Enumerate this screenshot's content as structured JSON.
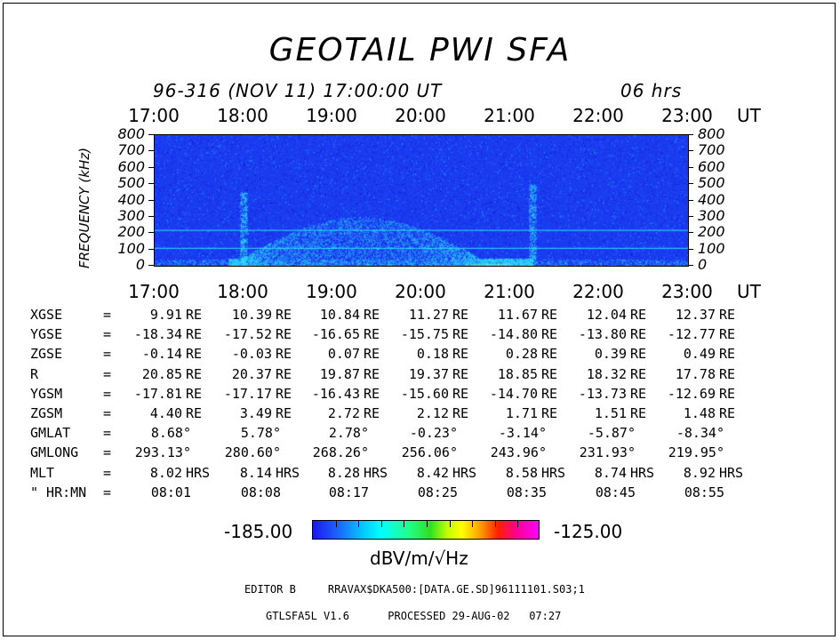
{
  "chart_data": {
    "type": "heatmap",
    "title": "GEOTAIL PWI SFA",
    "subtitle": "96-316 (NOV 11) 17:00:00 UT",
    "duration": "06 hrs",
    "x_unit": "UT",
    "x_ticks": [
      "17:00",
      "18:00",
      "19:00",
      "20:00",
      "21:00",
      "22:00",
      "23:00"
    ],
    "x_range": [
      "17:00",
      "23:00"
    ],
    "ylabel": "FREQUENCY (kHz)",
    "y_ticks": [
      800,
      700,
      600,
      500,
      400,
      300,
      200,
      100,
      0
    ],
    "y_range": [
      0,
      800
    ],
    "colorbar": {
      "min_label": "-185.00",
      "max_label": "-125.00",
      "unit": "dBV/m/√Hz",
      "colors": [
        "#1a18f0",
        "#1a6cff",
        "#00c8ff",
        "#00ffff",
        "#22ff90",
        "#30e020",
        "#c8ff00",
        "#ffff00",
        "#ffa000",
        "#ff2000",
        "#ff0090",
        "#ff00ff"
      ]
    },
    "background_color": "#1a3cf0",
    "features": [
      {
        "name": "broadband enhancement",
        "x_start": "17:50",
        "x_end": "21:15",
        "freq_max_khz": 300,
        "level": "cyan"
      },
      {
        "name": "vertical burst",
        "x": "18:00",
        "freq_max_khz": 450,
        "level": "cyan"
      },
      {
        "name": "vertical burst",
        "x": "21:15",
        "freq_max_khz": 500,
        "level": "cyan"
      },
      {
        "name": "low frequency band",
        "x_start": "17:00",
        "x_end": "23:00",
        "freq_max_khz": 40,
        "level": "cyan"
      },
      {
        "name": "low frequency intense",
        "x_start": "20:30",
        "x_end": "21:00",
        "freq_max_khz": 15,
        "level": "yellow"
      },
      {
        "name": "horizontal line",
        "freq_khz": 220,
        "level": "cyan"
      },
      {
        "name": "horizontal line",
        "freq_khz": 110,
        "level": "cyan"
      }
    ]
  },
  "orbit": {
    "rows": [
      {
        "label": "XGSE",
        "eq": "=",
        "values": [
          "9.91",
          "10.39",
          "10.84",
          "11.27",
          "11.67",
          "12.04",
          "12.37"
        ],
        "unit": "RE"
      },
      {
        "label": "YGSE",
        "eq": "=",
        "values": [
          "-18.34",
          "-17.52",
          "-16.65",
          "-15.75",
          "-14.80",
          "-13.80",
          "-12.77"
        ],
        "unit": "RE"
      },
      {
        "label": "ZGSE",
        "eq": "=",
        "values": [
          "-0.14",
          "-0.03",
          "0.07",
          "0.18",
          "0.28",
          "0.39",
          "0.49"
        ],
        "unit": "RE"
      },
      {
        "label": "R",
        "eq": "=",
        "values": [
          "20.85",
          "20.37",
          "19.87",
          "19.37",
          "18.85",
          "18.32",
          "17.78"
        ],
        "unit": "RE"
      },
      {
        "label": "YGSM",
        "eq": "=",
        "values": [
          "-17.81",
          "-17.17",
          "-16.43",
          "-15.60",
          "-14.70",
          "-13.73",
          "-12.69"
        ],
        "unit": "RE"
      },
      {
        "label": "ZGSM",
        "eq": "=",
        "values": [
          "4.40",
          "3.49",
          "2.72",
          "2.12",
          "1.71",
          "1.51",
          "1.48"
        ],
        "unit": "RE"
      },
      {
        "label": "GMLAT",
        "eq": "=",
        "values": [
          "8.68°",
          "5.78°",
          "2.78°",
          "-0.23°",
          "-3.14°",
          "-5.87°",
          "-8.34°"
        ],
        "unit": ""
      },
      {
        "label": "GMLONG",
        "eq": "=",
        "values": [
          "293.13°",
          "280.60°",
          "268.26°",
          "256.06°",
          "243.96°",
          "231.93°",
          "219.95°"
        ],
        "unit": ""
      },
      {
        "label": "MLT",
        "eq": "=",
        "values": [
          "8.02",
          "8.14",
          "8.28",
          "8.42",
          "8.58",
          "8.74",
          "8.92"
        ],
        "unit": "HRS"
      },
      {
        "label": "\" HR:MN",
        "eq": "=",
        "values": [
          "08:01",
          "08:08",
          "08:17",
          "08:25",
          "08:35",
          "08:45",
          "08:55"
        ],
        "unit": ""
      }
    ]
  },
  "footer": {
    "line1": "EDITOR B     RRAVAX$DKA500:[DATA.GE.SD]96111101.S03;1",
    "line2": "GTLSFA5L V1.6      PROCESSED 29-AUG-02   07:27"
  }
}
